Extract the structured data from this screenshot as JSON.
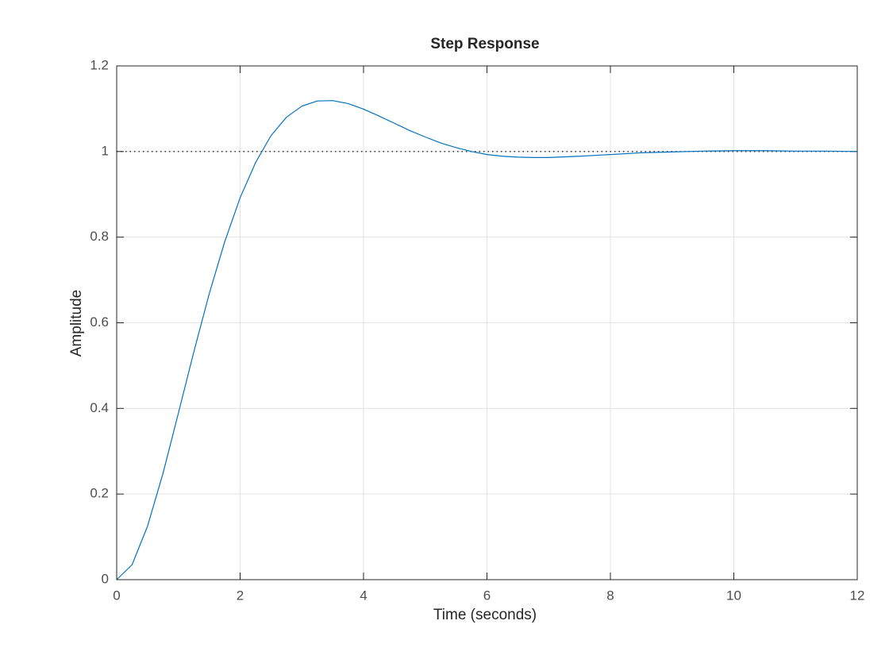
{
  "chart_data": {
    "type": "line",
    "title": "Step Response",
    "x_label": "Time (seconds)",
    "y_label": "Amplitude",
    "x": [
      0,
      0.25,
      0.5,
      0.75,
      1,
      1.25,
      1.5,
      1.75,
      2,
      2.25,
      2.5,
      2.75,
      3,
      3.25,
      3.5,
      3.75,
      4,
      4.25,
      4.5,
      4.75,
      5,
      5.25,
      5.5,
      5.75,
      6,
      6.25,
      6.5,
      6.75,
      7,
      7.5,
      8,
      8.5,
      9,
      9.5,
      10,
      10.5,
      11,
      11.5,
      12
    ],
    "values": [
      0,
      0.035,
      0.125,
      0.248,
      0.389,
      0.532,
      0.668,
      0.789,
      0.892,
      0.974,
      1.037,
      1.08,
      1.106,
      1.118,
      1.119,
      1.112,
      1.099,
      1.083,
      1.066,
      1.049,
      1.034,
      1.02,
      1.009,
      1.0,
      0.993,
      0.989,
      0.987,
      0.986,
      0.986,
      0.989,
      0.993,
      0.997,
      0.999,
      1.001,
      1.002,
      1.002,
      1.001,
      1.001,
      1.0
    ],
    "color": "#0072bd",
    "steady_state": 1,
    "xlim": [
      0,
      12
    ],
    "xticks": [
      0,
      2,
      4,
      6,
      8,
      10,
      12
    ],
    "ylim": [
      0,
      1.2
    ],
    "yticks": [
      0,
      0.2,
      0.4,
      0.6,
      0.8,
      1,
      1.2
    ],
    "grid": true
  }
}
